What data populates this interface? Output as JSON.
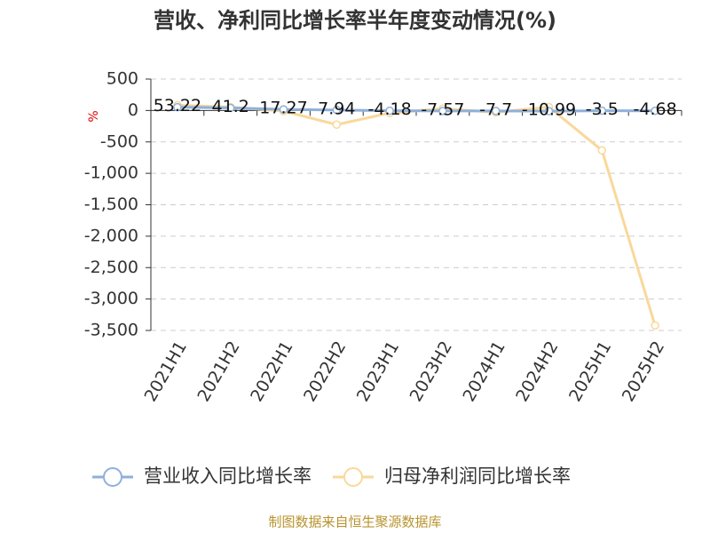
{
  "chart_data": {
    "type": "line",
    "title": "营收、净利同比增长率半年度变动情况(%)",
    "y_label": "%",
    "source": "制图数据来自恒生聚源数据库",
    "categories": [
      "2021H1",
      "2021H2",
      "2022H1",
      "2022H2",
      "2023H1",
      "2023H2",
      "2024H1",
      "2024H2",
      "2025H1",
      "2025H2"
    ],
    "series": [
      {
        "name": "营业收入同比增长率",
        "color": "#8fb0d9",
        "values": [
          53.22,
          41.2,
          17.27,
          7.94,
          -4.18,
          -7.57,
          -7.7,
          -10.99,
          -3.5,
          -4.68
        ],
        "data_labels": true
      },
      {
        "name": "归母净利润同比增长率",
        "color": "#f9d89a",
        "values": [
          85,
          55,
          -10,
          -225,
          -40,
          30,
          -30,
          55,
          -635,
          -3420
        ]
      }
    ],
    "ylim": [
      -3500,
      500
    ],
    "yticks": [
      500,
      0,
      -500,
      {
        "value": -1000,
        "label": "-1,000"
      },
      {
        "value": -1500,
        "label": "-1,500"
      },
      {
        "value": -2000,
        "label": "-2,000"
      },
      {
        "value": -2500,
        "label": "-2,500"
      },
      {
        "value": -3000,
        "label": "-3,000"
      },
      {
        "value": -3500,
        "label": "-3,500"
      }
    ],
    "grid": true
  }
}
